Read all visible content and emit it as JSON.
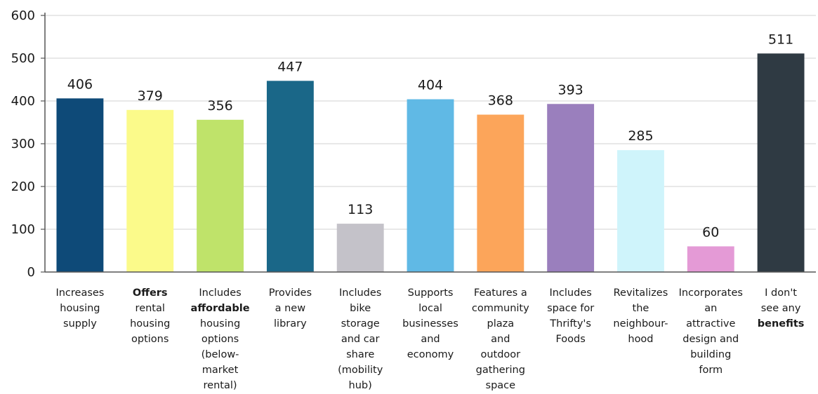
{
  "chart_data": {
    "type": "bar",
    "title": "",
    "xlabel": "",
    "ylabel": "",
    "ylim": [
      0,
      600
    ],
    "yticks": [
      0,
      100,
      200,
      300,
      400,
      500,
      600
    ],
    "grid": true,
    "categories": [
      "Increases housing supply",
      "Offers rental housing options",
      "Includes affordable housing options (below-market rental)",
      "Provides a new library",
      "Includes bike storage and car share (mobility hub)",
      "Supports local businesses and economy",
      "Features a community plaza and outdoor gathering space",
      "Includes space for Thrifty's Foods",
      "Revitalizes the neighbourhood",
      "Incorporates an attractive design and building form",
      "I don't see any benefits"
    ],
    "category_lines": [
      [
        "Increases",
        "housing",
        "supply"
      ],
      [
        "Offers",
        "rental",
        "housing",
        "options"
      ],
      [
        "Includes",
        "affordable",
        "housing",
        "options",
        "(below-",
        "market",
        "rental)"
      ],
      [
        "Provides",
        "a new",
        "library"
      ],
      [
        "Includes",
        "bike",
        "storage",
        "and car",
        "share",
        "(mobility",
        "hub)"
      ],
      [
        "Supports",
        "local",
        "businesses",
        "and",
        "economy"
      ],
      [
        "Features a",
        "community",
        "plaza",
        "and",
        "outdoor",
        "gathering",
        "space"
      ],
      [
        "Includes",
        "space for",
        "Thrifty's",
        "Foods"
      ],
      [
        "Revitalizes",
        "the",
        "neighbour-",
        "hood"
      ],
      [
        "Incorporates",
        "an",
        "attractive",
        "design and",
        "building",
        "form"
      ],
      [
        "I don't",
        "see any",
        "benefits"
      ]
    ],
    "bold_words": [
      "Offers",
      "affordable",
      "benefits"
    ],
    "values": [
      406,
      379,
      356,
      447,
      113,
      404,
      368,
      393,
      285,
      60,
      511
    ],
    "data_labels": [
      "406",
      "379",
      "356",
      "447",
      "113",
      "404",
      "368",
      "393",
      "285",
      "60",
      "511"
    ],
    "colors": [
      "#0e4a78",
      "#fbfa8a",
      "#bfe36a",
      "#1a6788",
      "#c4c2c9",
      "#60b9e5",
      "#fca55a",
      "#9a7fbd",
      "#cff4fb",
      "#e49ad6",
      "#2f3a43"
    ]
  }
}
